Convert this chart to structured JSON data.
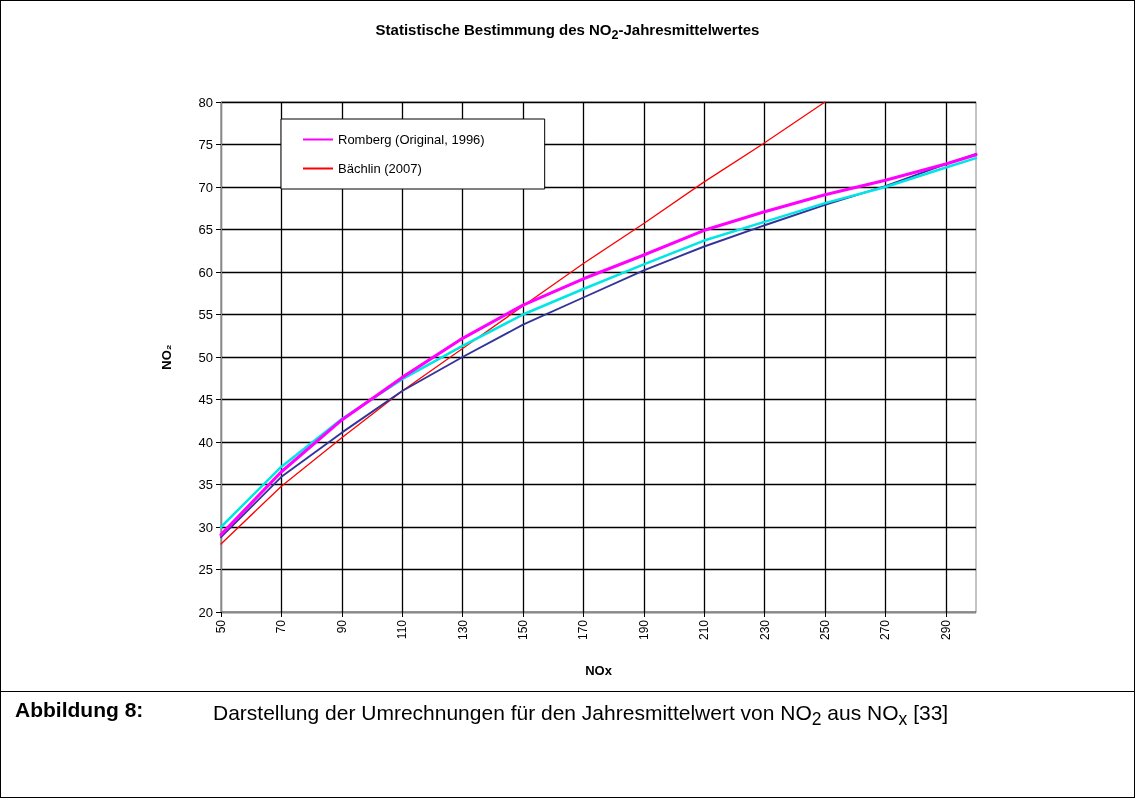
{
  "chart_data": {
    "type": "line",
    "title": "Statistische Bestimmung des NO$_{2}$-Jahresmittelwertes",
    "xlabel": "NOx",
    "ylabel": "NO₂",
    "annotations": [
      "Abbildung 8:",
      "Darstellung der Umrechnungen für den Jahresmittelwert von NO$_{2}$ aus NO$_{x}$ [33]"
    ],
    "x": [
      50,
      70,
      90,
      110,
      130,
      150,
      170,
      190,
      210,
      230,
      250,
      270,
      290,
      300
    ],
    "series": [
      {
        "name": "Romberg (Original, 1996)",
        "color": "#ff00ff",
        "values": [
          29.1,
          36.5,
          42.6,
          47.6,
          52.2,
          56.1,
          59.2,
          62.0,
          64.9,
          67.1,
          69.1,
          70.8,
          72.7,
          73.8
        ]
      },
      {
        "color": "#00e5e5",
        "values": [
          30,
          37.1,
          42.7,
          47.4,
          51.3,
          55,
          58,
          60.9,
          63.7,
          65.9,
          68.1,
          70,
          72.3,
          73.4
        ]
      },
      {
        "color": "#333399",
        "values": [
          28.8,
          35.9,
          41.1,
          46,
          50,
          53.8,
          57,
          60.2,
          63,
          65.5,
          67.9,
          70.1,
          72.7,
          73.9
        ]
      },
      {
        "name": "Bächlin (2007)",
        "color": "#ff0000",
        "x": [
          50,
          70,
          90,
          110,
          130,
          150,
          170,
          190,
          210,
          230,
          250
        ],
        "values": [
          28,
          34.8,
          40.5,
          46,
          51,
          56,
          61,
          65.7,
          70.6,
          75.2,
          80
        ]
      }
    ],
    "xlim": [
      50,
      300
    ],
    "xticks": [
      50,
      70,
      90,
      110,
      130,
      150,
      170,
      190,
      210,
      230,
      250,
      270,
      290
    ],
    "ylim": [
      20,
      80
    ],
    "yticks": [
      20,
      25,
      30,
      35,
      40,
      45,
      50,
      55,
      60,
      65,
      70,
      75,
      80
    ],
    "grid": true,
    "legend": "top left",
    "marker": "none",
    "line_style": "solid"
  }
}
